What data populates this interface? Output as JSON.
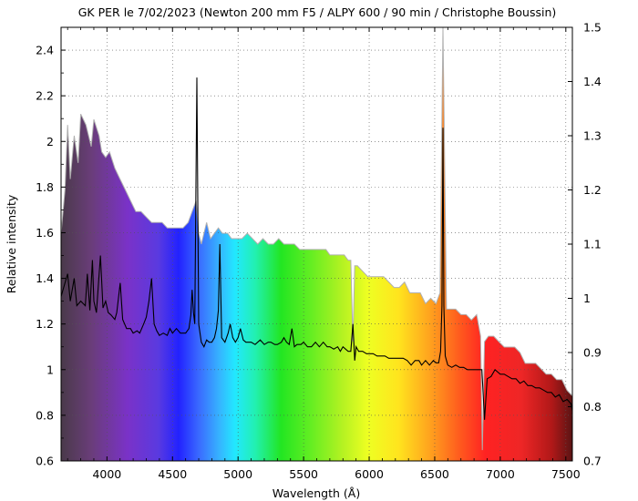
{
  "chart_data": {
    "type": "line",
    "title": "GK PER le 7/02/2023 (Newton 200 mm F5 / ALPY 600 / 90 min / Christophe Boussin)",
    "xlabel": "Wavelength (Å)",
    "ylabel": "Relative intensity",
    "xlim": [
      3650,
      7550
    ],
    "ylim": [
      0.6,
      2.5
    ],
    "y2lim": [
      0.7,
      1.5
    ],
    "grid": true,
    "x_ticks": [
      "4000",
      "4500",
      "5000",
      "5500",
      "6000",
      "6500",
      "7000",
      "7500"
    ],
    "y_ticks": [
      "0.6",
      "0.8",
      "1",
      "1.2",
      "1.4",
      "1.6",
      "1.8",
      "2",
      "2.2",
      "2.4"
    ],
    "y2_ticks": [
      "0.7",
      "0.8",
      "0.9",
      "1",
      "1.1",
      "1.2",
      "1.3",
      "1.4",
      "1.5"
    ],
    "background": "visible-spectrum colour gradient",
    "series": [
      {
        "axis": "left",
        "color": "#000000",
        "x": [
          3650,
          3680,
          3700,
          3720,
          3750,
          3770,
          3800,
          3835,
          3850,
          3870,
          3889,
          3900,
          3920,
          3950,
          3970,
          3990,
          4010,
          4030,
          4060,
          4075,
          4101,
          4120,
          4150,
          4180,
          4200,
          4230,
          4250,
          4280,
          4300,
          4320,
          4340,
          4360,
          4380,
          4400,
          4430,
          4460,
          4480,
          4500,
          4530,
          4560,
          4600,
          4625,
          4640,
          4650,
          4660,
          4670,
          4686,
          4700,
          4720,
          4740,
          4760,
          4780,
          4800,
          4820,
          4835,
          4850,
          4861,
          4875,
          4900,
          4924,
          4940,
          4960,
          4980,
          5000,
          5018,
          5040,
          5060,
          5080,
          5100,
          5130,
          5169,
          5200,
          5230,
          5250,
          5280,
          5300,
          5330,
          5350,
          5370,
          5390,
          5411,
          5430,
          5450,
          5480,
          5500,
          5530,
          5560,
          5590,
          5620,
          5650,
          5680,
          5700,
          5730,
          5760,
          5780,
          5800,
          5820,
          5840,
          5860,
          5876,
          5890,
          5900,
          5920,
          5950,
          5980,
          6000,
          6030,
          6060,
          6090,
          6120,
          6150,
          6180,
          6200,
          6230,
          6260,
          6290,
          6320,
          6350,
          6380,
          6400,
          6430,
          6460,
          6490,
          6510,
          6530,
          6545,
          6555,
          6563,
          6570,
          6580,
          6600,
          6630,
          6660,
          6690,
          6720,
          6750,
          6780,
          6810,
          6840,
          6860,
          6880,
          6900,
          6930,
          6960,
          7000,
          7030,
          7060,
          7090,
          7120,
          7150,
          7180,
          7210,
          7240,
          7270,
          7300,
          7330,
          7360,
          7390,
          7420,
          7450,
          7480,
          7510,
          7540,
          7550
        ],
        "y": [
          1.32,
          1.38,
          1.42,
          1.3,
          1.4,
          1.28,
          1.3,
          1.28,
          1.42,
          1.26,
          1.48,
          1.3,
          1.25,
          1.5,
          1.27,
          1.3,
          1.25,
          1.24,
          1.22,
          1.25,
          1.38,
          1.22,
          1.18,
          1.18,
          1.16,
          1.17,
          1.16,
          1.2,
          1.23,
          1.3,
          1.4,
          1.2,
          1.17,
          1.15,
          1.16,
          1.15,
          1.18,
          1.16,
          1.18,
          1.16,
          1.16,
          1.18,
          1.24,
          1.35,
          1.25,
          1.2,
          2.28,
          1.2,
          1.12,
          1.1,
          1.13,
          1.12,
          1.12,
          1.14,
          1.18,
          1.26,
          1.55,
          1.14,
          1.12,
          1.16,
          1.2,
          1.14,
          1.12,
          1.14,
          1.18,
          1.13,
          1.12,
          1.12,
          1.12,
          1.11,
          1.13,
          1.11,
          1.12,
          1.12,
          1.11,
          1.11,
          1.12,
          1.14,
          1.12,
          1.11,
          1.18,
          1.1,
          1.11,
          1.11,
          1.12,
          1.1,
          1.1,
          1.12,
          1.1,
          1.12,
          1.1,
          1.1,
          1.09,
          1.1,
          1.08,
          1.1,
          1.09,
          1.08,
          1.08,
          1.2,
          1.04,
          1.1,
          1.08,
          1.08,
          1.07,
          1.07,
          1.07,
          1.06,
          1.06,
          1.06,
          1.05,
          1.05,
          1.05,
          1.05,
          1.05,
          1.04,
          1.02,
          1.04,
          1.04,
          1.02,
          1.04,
          1.02,
          1.04,
          1.03,
          1.03,
          1.08,
          1.28,
          2.06,
          1.28,
          1.06,
          1.02,
          1.01,
          1.02,
          1.01,
          1.01,
          1.0,
          1.0,
          1.0,
          1.0,
          1.0,
          0.78,
          0.96,
          0.97,
          1.0,
          0.98,
          0.98,
          0.97,
          0.96,
          0.96,
          0.94,
          0.95,
          0.93,
          0.93,
          0.92,
          0.92,
          0.91,
          0.9,
          0.9,
          0.88,
          0.89,
          0.86,
          0.87,
          0.85,
          0.82
        ]
      },
      {
        "axis": "right",
        "color": "#b0b0b0",
        "x": [
          3650,
          3680,
          3700,
          3720,
          3750,
          3780,
          3800,
          3840,
          3860,
          3880,
          3900,
          3940,
          3960,
          3990,
          4020,
          4060,
          4100,
          4140,
          4180,
          4220,
          4260,
          4300,
          4340,
          4380,
          4420,
          4460,
          4500,
          4540,
          4580,
          4620,
          4650,
          4680,
          4700,
          4720,
          4740,
          4760,
          4790,
          4820,
          4850,
          4880,
          4900,
          4920,
          4950,
          4990,
          5030,
          5070,
          5110,
          5150,
          5190,
          5230,
          5270,
          5310,
          5350,
          5390,
          5430,
          5470,
          5510,
          5550,
          5590,
          5630,
          5670,
          5700,
          5730,
          5770,
          5810,
          5840,
          5860,
          5876,
          5890,
          5910,
          5950,
          5990,
          6030,
          6070,
          6110,
          6150,
          6190,
          6230,
          6270,
          6310,
          6350,
          6390,
          6430,
          6470,
          6510,
          6540,
          6563,
          6590,
          6620,
          6660,
          6700,
          6740,
          6780,
          6820,
          6850,
          6863,
          6880,
          6910,
          6950,
          6990,
          7030,
          7070,
          7110,
          7150,
          7190,
          7230,
          7270,
          7310,
          7350,
          7390,
          7430,
          7470,
          7510,
          7550
        ],
        "y": [
          1.12,
          1.2,
          1.32,
          1.22,
          1.3,
          1.25,
          1.34,
          1.32,
          1.3,
          1.28,
          1.33,
          1.3,
          1.27,
          1.26,
          1.27,
          1.24,
          1.22,
          1.2,
          1.18,
          1.16,
          1.16,
          1.15,
          1.14,
          1.14,
          1.14,
          1.13,
          1.13,
          1.13,
          1.13,
          1.14,
          1.16,
          1.18,
          1.12,
          1.1,
          1.12,
          1.14,
          1.11,
          1.12,
          1.13,
          1.12,
          1.12,
          1.12,
          1.11,
          1.11,
          1.11,
          1.12,
          1.11,
          1.1,
          1.11,
          1.1,
          1.1,
          1.11,
          1.1,
          1.1,
          1.1,
          1.09,
          1.09,
          1.09,
          1.09,
          1.09,
          1.09,
          1.08,
          1.08,
          1.08,
          1.08,
          1.07,
          1.07,
          0.92,
          1.06,
          1.06,
          1.05,
          1.04,
          1.04,
          1.04,
          1.04,
          1.03,
          1.02,
          1.02,
          1.03,
          1.01,
          1.01,
          1.01,
          0.99,
          1.0,
          0.99,
          1.01,
          1.5,
          0.98,
          0.98,
          0.98,
          0.97,
          0.97,
          0.96,
          0.97,
          0.93,
          0.72,
          0.92,
          0.93,
          0.93,
          0.92,
          0.91,
          0.91,
          0.91,
          0.9,
          0.88,
          0.88,
          0.88,
          0.87,
          0.86,
          0.86,
          0.85,
          0.85,
          0.83,
          0.82
        ]
      }
    ]
  }
}
